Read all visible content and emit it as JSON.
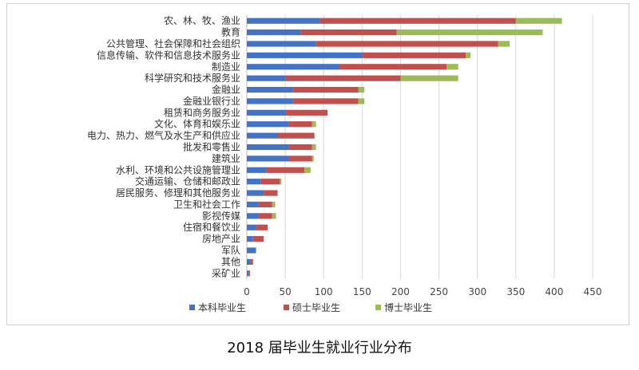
{
  "caption": "2018 届毕业生就业行业分布",
  "chart_data": {
    "type": "bar",
    "orientation": "horizontal",
    "stacked": true,
    "title": "",
    "xlabel": "",
    "ylabel": "",
    "xlim": [
      0,
      450
    ],
    "xticks": [
      0,
      50,
      100,
      150,
      200,
      250,
      300,
      350,
      400,
      450
    ],
    "grid": true,
    "legend_position": "bottom",
    "categories": [
      "农、林、牧、渔业",
      "教育",
      "公共管理、社会保障和社会组织",
      "信息传输、软件和信息技术服务业",
      "制造业",
      "科学研究和技术服务业",
      "金融业",
      "金融业银行业",
      "租赁和商务服务业",
      "文化、体育和娱乐业",
      "电力、热力、燃气及水生产和供应业",
      "批发和零售业",
      "建筑业",
      "水利、环境和公共设施管理业",
      "交通运输、仓储和邮政业",
      "居民服务、修理和其他服务业",
      "卫生和社会工作",
      "影视传媒",
      "住宿和餐饮业",
      "房地产业",
      "军队",
      "其他",
      "采矿业"
    ],
    "series": [
      {
        "name": "本科毕业生",
        "color": "#4472C4",
        "values": [
          95,
          70,
          90,
          150,
          120,
          50,
          60,
          60,
          50,
          55,
          40,
          55,
          55,
          25,
          18,
          22,
          15,
          15,
          12,
          8,
          12,
          5,
          2
        ]
      },
      {
        "name": "硕士毕业生",
        "color": "#C0504D",
        "values": [
          255,
          125,
          237,
          135,
          140,
          150,
          85,
          85,
          55,
          30,
          48,
          30,
          30,
          50,
          25,
          18,
          18,
          18,
          15,
          14,
          0,
          3,
          2
        ]
      },
      {
        "name": "博士毕业生",
        "color": "#9BBB59",
        "values": [
          60,
          190,
          15,
          6,
          15,
          75,
          8,
          8,
          0,
          5,
          0,
          5,
          2,
          8,
          2,
          0,
          4,
          5,
          0,
          0,
          0,
          0,
          0
        ]
      }
    ]
  }
}
